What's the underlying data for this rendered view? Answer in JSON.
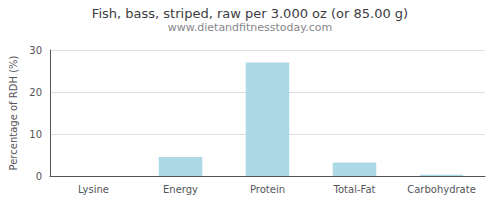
{
  "chart_data": {
    "type": "bar",
    "title": "Fish, bass, striped, raw per 3.000 oz (or 85.00 g)",
    "subtitle": "www.dietandfitnesstoday.com",
    "categories": [
      "Lysine",
      "Energy",
      "Protein",
      "Total-Fat",
      "Carbohydrate"
    ],
    "values": [
      0.0,
      4.5,
      27.0,
      3.2,
      0.3
    ],
    "color": "#add8e6",
    "ylabel": "Percentage of RDH (%)",
    "ylim": [
      0,
      30
    ],
    "yticks": [
      0,
      10,
      20,
      30
    ],
    "grid": true
  }
}
